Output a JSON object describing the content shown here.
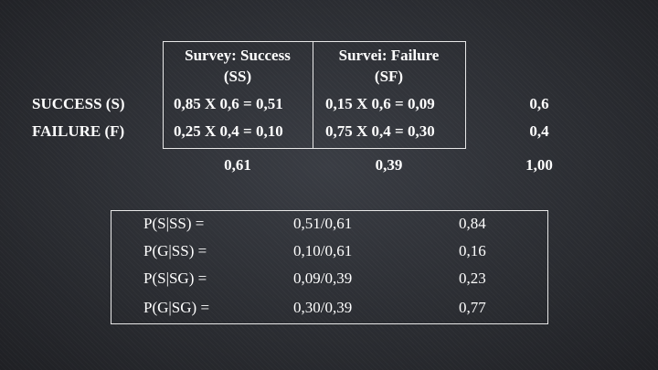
{
  "top_table": {
    "col_headers": [
      {
        "line1": "Survey: Success",
        "line2": "(SS)"
      },
      {
        "line1": "Survei: Failure",
        "line2": "(SF)"
      }
    ],
    "rows": [
      {
        "label": "SUCCESS (S)",
        "ss": "0,85 X 0,6 = 0,51",
        "sf": "0,15 X 0,6 = 0,09",
        "total": "0,6"
      },
      {
        "label": "FAILURE (F)",
        "ss": "0,25 X 0,4 = 0,10",
        "sf": "0,75 X 0,4 = 0,30",
        "total": "0,4"
      }
    ],
    "totals": {
      "ss": "0,61",
      "sf": "0,39",
      "grand": "1,00"
    }
  },
  "posterior_table": {
    "rows": [
      {
        "label": "P(S|SS) =",
        "formula": "0,51/0,61",
        "result": "0,84"
      },
      {
        "label": "P(G|SS) =",
        "formula": "0,10/0,61",
        "result": "0,16"
      },
      {
        "label": "P(S|SG) =",
        "formula": "0,09/0,39",
        "result": "0,23"
      },
      {
        "label": "P(G|SG) =",
        "formula": "0,30/0,39",
        "result": "0,77"
      }
    ]
  }
}
